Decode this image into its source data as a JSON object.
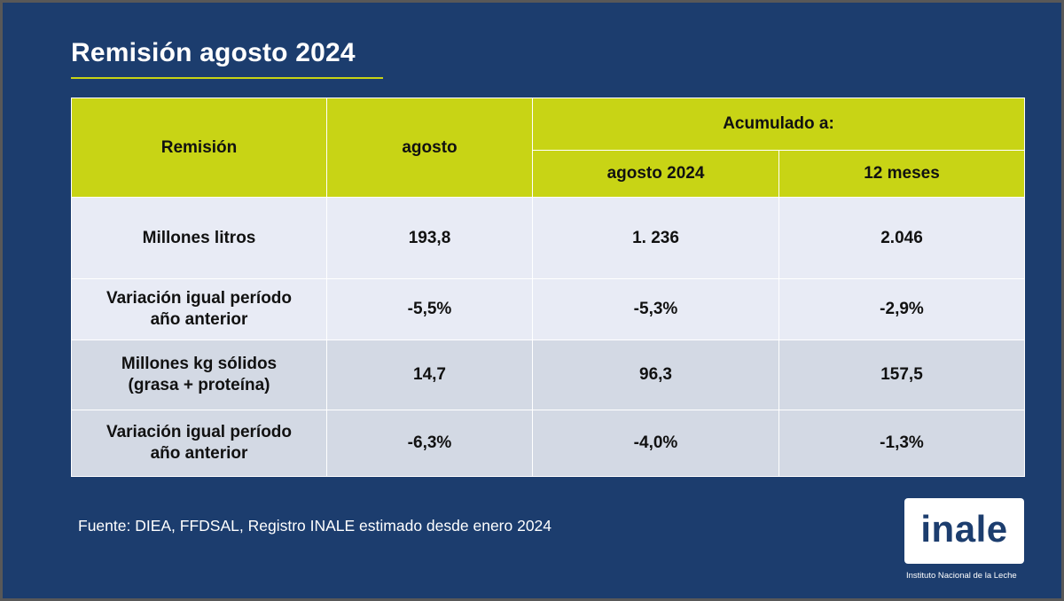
{
  "title": "Remisión agosto 2024",
  "table": {
    "headers": {
      "col1": "Remisión",
      "col2": "agosto",
      "group": "Acumulado a:",
      "sub1": "agosto 2024",
      "sub2": "12 meses"
    },
    "rows": [
      {
        "label": [
          "Millones litros"
        ],
        "values": [
          "193,8",
          "1. 236",
          "2.046"
        ]
      },
      {
        "label": [
          "Variación igual período",
          "año anterior"
        ],
        "values": [
          "-5,5%",
          "-5,3%",
          "-2,9%"
        ]
      },
      {
        "label": [
          "Millones kg sólidos",
          "(grasa + proteína)"
        ],
        "values": [
          "14,7",
          "96,3",
          "157,5"
        ]
      },
      {
        "label": [
          "Variación igual período",
          "año anterior"
        ],
        "values": [
          "-6,3%",
          "-4,0%",
          "-1,3%"
        ]
      }
    ]
  },
  "source": "Fuente: DIEA, FFDSAL, Registro INALE estimado desde enero 2024",
  "logo": {
    "wordmark": "inale",
    "caption": "Instituto Nacional de la Leche"
  },
  "colors": {
    "background": "#1c3d6e",
    "accent": "#c8d415",
    "row_light": "#e8ebf5",
    "row_dark": "#d3d9e4"
  }
}
